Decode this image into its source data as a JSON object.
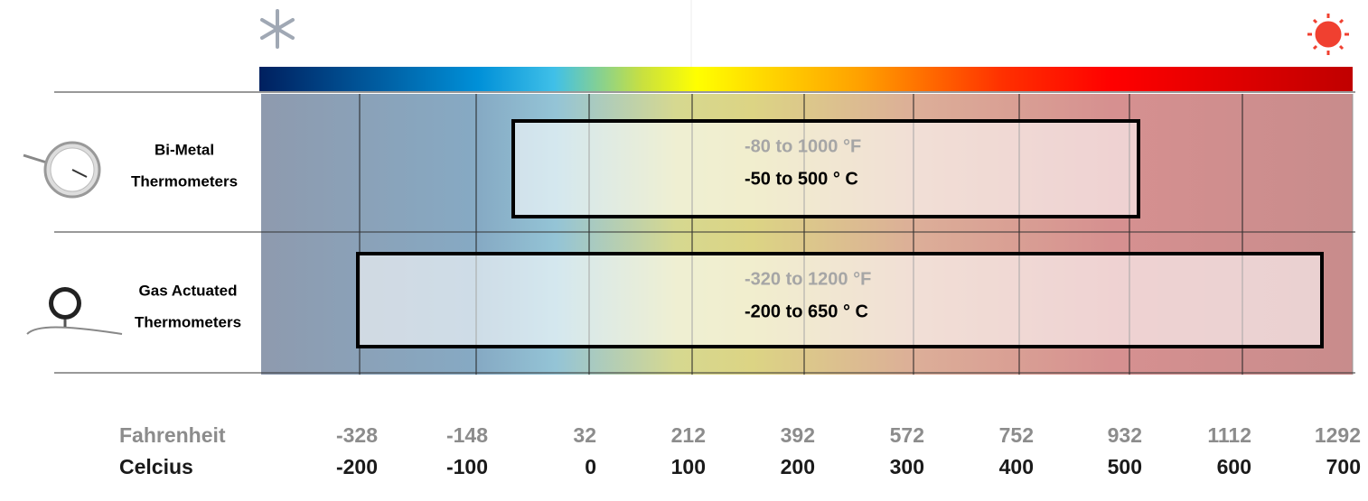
{
  "rows": [
    {
      "label_lines": [
        "Bi-Metal",
        "Thermometers"
      ],
      "range_f": "-80 to 1000 °F",
      "range_c": "-50 to 500 ° C"
    },
    {
      "label_lines": [
        "Gas Actuated",
        "Thermometers"
      ],
      "range_f": "-320 to 1200 °F",
      "range_c": "-200 to 650 ° C"
    }
  ],
  "scale": {
    "fahrenheit_label": "Fahrenheit",
    "celsius_label": "Celcius",
    "fahrenheit": [
      -328,
      -148,
      32,
      212,
      392,
      572,
      752,
      932,
      1112,
      1292
    ],
    "celsius": [
      -200,
      -100,
      0,
      100,
      200,
      300,
      400,
      500,
      600,
      700
    ]
  }
}
